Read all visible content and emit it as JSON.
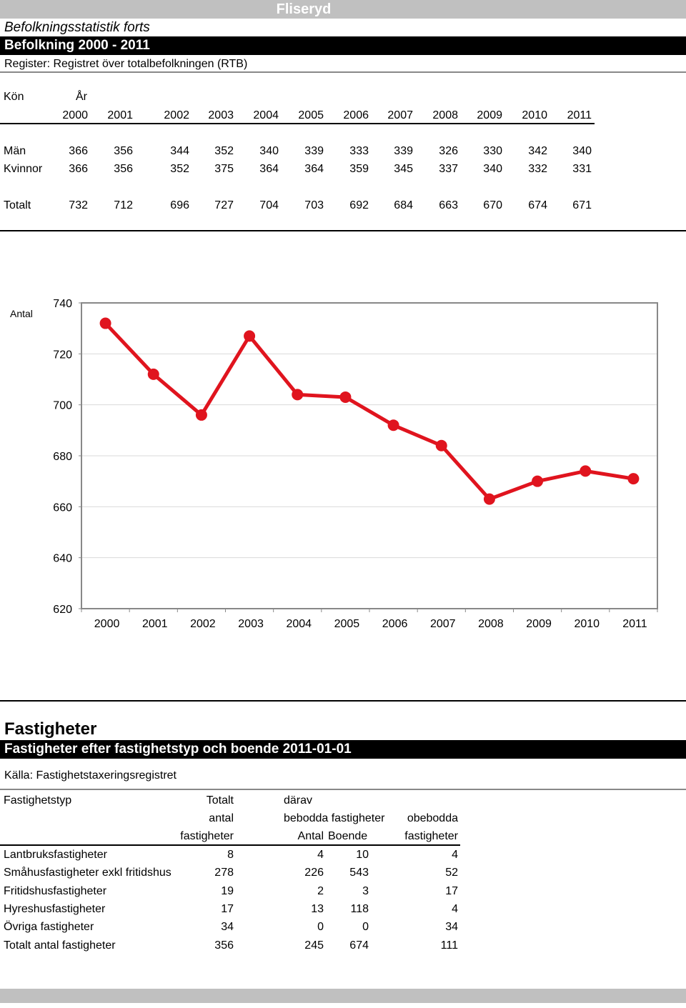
{
  "header": {
    "location": "Fliseryd",
    "series_title": "Befolkningsstatistik forts",
    "section_title": "Befolkning 2000 - 2011",
    "register": "Register: Registret över totalbefolkningen (RTB)"
  },
  "population_table": {
    "col_kon": "Kön",
    "col_year": "År",
    "years": [
      "2000",
      "2001",
      "2002",
      "2003",
      "2004",
      "2005",
      "2006",
      "2007",
      "2008",
      "2009",
      "2010",
      "2011"
    ],
    "rows": [
      {
        "label": "Män",
        "values": [
          "366",
          "356",
          "344",
          "352",
          "340",
          "339",
          "333",
          "339",
          "326",
          "330",
          "342",
          "340"
        ]
      },
      {
        "label": "Kvinnor",
        "values": [
          "366",
          "356",
          "352",
          "375",
          "364",
          "364",
          "359",
          "345",
          "337",
          "340",
          "332",
          "331"
        ]
      },
      {
        "label": "Totalt",
        "values": [
          "732",
          "712",
          "696",
          "727",
          "704",
          "703",
          "692",
          "684",
          "663",
          "670",
          "674",
          "671"
        ]
      }
    ]
  },
  "chart_data": {
    "type": "line",
    "ylabel": "Antal",
    "categories": [
      "2000",
      "2001",
      "2002",
      "2003",
      "2004",
      "2005",
      "2006",
      "2007",
      "2008",
      "2009",
      "2010",
      "2011"
    ],
    "values": [
      732,
      712,
      696,
      727,
      704,
      703,
      692,
      684,
      663,
      670,
      674,
      671
    ],
    "ylim": [
      620,
      740
    ],
    "yticks": [
      "620",
      "640",
      "660",
      "680",
      "700",
      "720",
      "740"
    ],
    "grid": true,
    "color": "#e0141e"
  },
  "property": {
    "title": "Fastigheter",
    "section_title": "Fastigheter efter fastighetstyp och boende 2011-01-01",
    "source": "Källa: Fastighetstaxeringsregistret",
    "head": {
      "type": "Fastighetstyp",
      "total_1": "Totalt",
      "total_2": "antal",
      "total_3": "fastigheter",
      "of_which": "därav",
      "inhabited": "bebodda fastigheter",
      "uninhabited_1": "obebodda",
      "uninhabited_2": "fastigheter",
      "count": "Antal",
      "residents": "Boende"
    },
    "rows": [
      {
        "label": "Lantbruksfastigheter",
        "total": "8",
        "count": "4",
        "residents": "10",
        "uninhabited": "4"
      },
      {
        "label": "Småhusfastigheter exkl fritidshus",
        "total": "278",
        "count": "226",
        "residents": "543",
        "uninhabited": "52"
      },
      {
        "label": "Fritidshusfastigheter",
        "total": "19",
        "count": "2",
        "residents": "3",
        "uninhabited": "17"
      },
      {
        "label": "Hyreshusfastigheter",
        "total": "17",
        "count": "13",
        "residents": "118",
        "uninhabited": "4"
      },
      {
        "label": "Övriga fastigheter",
        "total": "34",
        "count": "0",
        "residents": "0",
        "uninhabited": "34"
      },
      {
        "label": "Totalt antal fastigheter",
        "total": "356",
        "count": "245",
        "residents": "674",
        "uninhabited": "111"
      }
    ]
  }
}
